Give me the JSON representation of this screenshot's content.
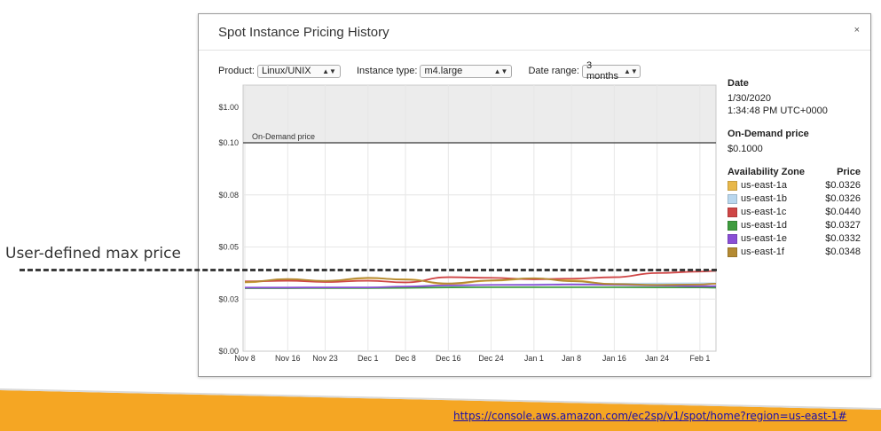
{
  "slide": {
    "label": "User-defined max price",
    "link": "https://console.aws.amazon.com/ec2sp/v1/spot/home?region=us-east-1#"
  },
  "dialog": {
    "title": "Spot Instance Pricing History",
    "close": "×",
    "filters": {
      "product_label": "Product:",
      "product_value": "Linux/UNIX",
      "instance_label": "Instance type:",
      "instance_value": "m4.large",
      "range_label": "Date range:",
      "range_value": "3 months"
    },
    "details": {
      "date_heading": "Date",
      "date": "1/30/2020",
      "time": "1:34:48 PM UTC+0000",
      "ondemand_heading": "On-Demand price",
      "ondemand_value": "$0.1000",
      "az_heading": "Availability Zone",
      "price_heading": "Price",
      "zones": [
        {
          "name": "us-east-1a",
          "price": "$0.0326",
          "color": "#e8b84a"
        },
        {
          "name": "us-east-1b",
          "price": "$0.0326",
          "color": "#b9d7ee"
        },
        {
          "name": "us-east-1c",
          "price": "$0.0440",
          "color": "#cf4646"
        },
        {
          "name": "us-east-1d",
          "price": "$0.0327",
          "color": "#3e9c3e"
        },
        {
          "name": "us-east-1e",
          "price": "$0.0332",
          "color": "#8a4fd6"
        },
        {
          "name": "us-east-1f",
          "price": "$0.0348",
          "color": "#b48a32"
        }
      ]
    }
  },
  "chart_data": {
    "type": "line",
    "x_tick_labels": [
      "Nov 8",
      "Nov 16",
      "Nov 23",
      "Dec 1",
      "Dec 8",
      "Dec 16",
      "Dec 24",
      "Jan 1",
      "Jan 8",
      "Jan 16",
      "Jan 24",
      "Feb 1"
    ],
    "y_tick_labels": [
      "$0.00",
      "$0.03",
      "$0.05",
      "$0.08",
      "$0.10",
      "$1.00"
    ],
    "x_range": [
      "Nov 8",
      "Feb 1"
    ],
    "ondemand_label": "On-Demand price",
    "ondemand_price": 0.1,
    "grid": true,
    "series": [
      {
        "name": "us-east-1a",
        "color": "#e8b84a",
        "x": [
          "Nov 8",
          "Nov 16",
          "Nov 23",
          "Dec 1",
          "Dec 8",
          "Dec 16",
          "Dec 24",
          "Jan 1",
          "Jan 8",
          "Jan 16",
          "Jan 24",
          "Feb 1",
          "Feb 4"
        ],
        "values": [
          0.033,
          0.0345,
          0.0335,
          0.035,
          0.0345,
          0.0322,
          0.0338,
          0.0348,
          0.034,
          0.032,
          0.0316,
          0.0322,
          0.0326
        ]
      },
      {
        "name": "us-east-1b",
        "color": "#b9d7ee",
        "x": [
          "Nov 8",
          "Nov 16",
          "Nov 23",
          "Dec 1",
          "Dec 8",
          "Dec 16",
          "Dec 24",
          "Jan 1",
          "Jan 8",
          "Jan 16",
          "Jan 24",
          "Feb 1",
          "Feb 4"
        ],
        "values": [
          0.0305,
          0.0305,
          0.0306,
          0.0306,
          0.0308,
          0.0312,
          0.0318,
          0.032,
          0.0322,
          0.0324,
          0.0325,
          0.0326,
          0.0326
        ]
      },
      {
        "name": "us-east-1c",
        "color": "#cf4646",
        "x": [
          "Nov 8",
          "Nov 16",
          "Nov 23",
          "Dec 1",
          "Dec 8",
          "Dec 16",
          "Dec 24",
          "Jan 1",
          "Jan 8",
          "Jan 16",
          "Jan 24",
          "Feb 1",
          "Feb 4"
        ],
        "values": [
          0.0335,
          0.0338,
          0.0332,
          0.0338,
          0.033,
          0.0355,
          0.0352,
          0.0345,
          0.0348,
          0.0355,
          0.0375,
          0.0382,
          0.0385
        ]
      },
      {
        "name": "us-east-1d",
        "color": "#3e9c3e",
        "x": [
          "Nov 8",
          "Nov 16",
          "Nov 23",
          "Dec 1",
          "Dec 8",
          "Dec 16",
          "Dec 24",
          "Jan 1",
          "Jan 8",
          "Jan 16",
          "Jan 24",
          "Feb 1",
          "Feb 4"
        ],
        "values": [
          0.0302,
          0.0302,
          0.0303,
          0.0303,
          0.0304,
          0.0306,
          0.0307,
          0.0307,
          0.0307,
          0.0307,
          0.0306,
          0.0306,
          0.0305
        ]
      },
      {
        "name": "us-east-1e",
        "color": "#8a4fd6",
        "x": [
          "Nov 8",
          "Nov 16",
          "Nov 23",
          "Dec 1",
          "Dec 8",
          "Dec 16",
          "Dec 24",
          "Jan 1",
          "Jan 8",
          "Jan 16",
          "Jan 24",
          "Feb 1",
          "Feb 4"
        ],
        "values": [
          0.0305,
          0.0305,
          0.0306,
          0.0306,
          0.031,
          0.0316,
          0.0318,
          0.0318,
          0.032,
          0.0318,
          0.0315,
          0.0312,
          0.0312
        ]
      },
      {
        "name": "us-east-1f",
        "color": "#b48a32",
        "x": [
          "Nov 8",
          "Nov 16",
          "Nov 23",
          "Dec 1",
          "Dec 8",
          "Dec 16",
          "Dec 24",
          "Jan 1",
          "Jan 8",
          "Jan 16",
          "Jan 24",
          "Feb 1",
          "Feb 4"
        ],
        "values": [
          0.0332,
          0.0346,
          0.0337,
          0.0352,
          0.0343,
          0.0325,
          0.034,
          0.035,
          0.0336,
          0.0322,
          0.0318,
          0.032,
          0.0324
        ]
      }
    ]
  }
}
